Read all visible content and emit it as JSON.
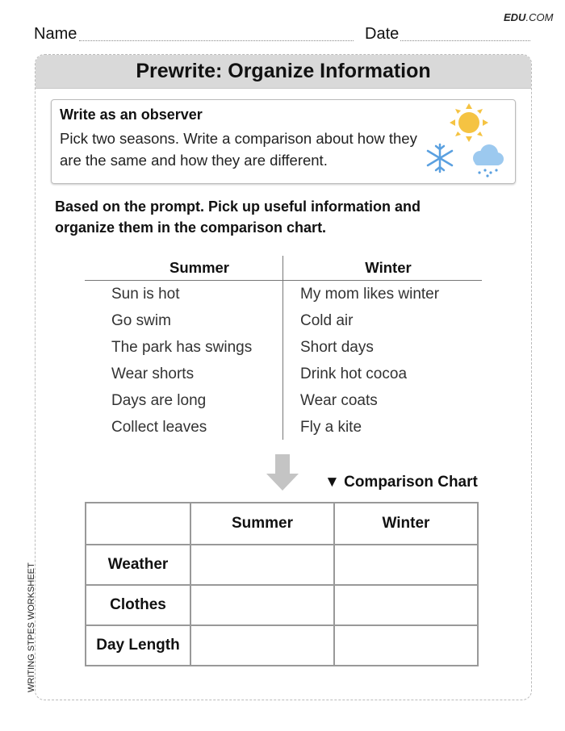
{
  "brand": {
    "bold": "EDU",
    "rest": ".COM"
  },
  "header": {
    "name_label": "Name",
    "date_label": "Date"
  },
  "title": "Prewrite: Organize Information",
  "prompt": {
    "title": "Write as an observer",
    "text": "Pick two seasons. Write a comparison about how they are the same and how they are different.",
    "icons": [
      "sun-icon",
      "snowflake-icon",
      "rain-cloud-icon"
    ]
  },
  "instruction": "Based on the prompt. Pick up useful information and organize them in the comparison chart.",
  "t_chart": {
    "headers": [
      "Summer",
      "Winter"
    ],
    "summer": [
      "Sun is hot",
      "Go swim",
      "The park has swings",
      "Wear shorts",
      "Days are long",
      "Collect leaves"
    ],
    "winter": [
      "My mom likes winter",
      "Cold air",
      "Short days",
      "Drink hot cocoa",
      "Wear coats",
      "Fly a kite"
    ]
  },
  "chart_label": "Comparison Chart",
  "table": {
    "headers": [
      "",
      "Summer",
      "Winter"
    ],
    "rows": [
      "Weather",
      "Clothes",
      "Day Length"
    ]
  },
  "side_label": "WRITING STPES WORKSHEET",
  "colors": {
    "sun": "#f5c342",
    "snow": "#5aa0e0",
    "cloud": "#9cc9ef",
    "arrow": "#c4c4c4",
    "header_band": "#d9d9d9"
  }
}
